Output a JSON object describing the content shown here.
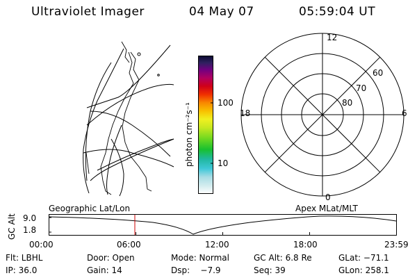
{
  "header": {
    "instrument": "Ultraviolet Imager",
    "date": "04 May 07",
    "time": "05:59:04 UT"
  },
  "colorbar": {
    "unit_label": "photon cm⁻²s⁻¹",
    "ticks": [
      "100",
      "10"
    ]
  },
  "polar_plot": {
    "mlt_labels": {
      "top": "12",
      "left": "18",
      "right": "6",
      "bottom": "0"
    },
    "lat_labels": [
      "60",
      "70",
      "80"
    ]
  },
  "timeline": {
    "left_title": "Geographic Lat/Lon",
    "right_title": "Apex MLat/MLT",
    "y_axis_label": "GC Alt",
    "y_ticks": [
      "9.0",
      "1.8"
    ],
    "x_ticks": [
      "00:00",
      "06:00",
      "12:00",
      "18:00",
      "23:59"
    ],
    "marker_time": "05:59:04",
    "marker_color": "#cc0000"
  },
  "footer": {
    "row1": [
      {
        "key": "flt",
        "text": "Flt: LBHL"
      },
      {
        "key": "door",
        "text": "Door: Open"
      },
      {
        "key": "mode",
        "text": "Mode: Normal"
      },
      {
        "key": "gcalt",
        "text": "GC Alt: 6.8 Re"
      },
      {
        "key": "glat",
        "text": "GLat: −71.1"
      }
    ],
    "row2": [
      {
        "key": "ip",
        "text": "IP: 36.0"
      },
      {
        "key": "gain",
        "text": "Gain: 14"
      },
      {
        "key": "dsp",
        "text": "Dsp:    −7.9"
      },
      {
        "key": "seq",
        "text": "Seq: 39"
      },
      {
        "key": "glon",
        "text": "GLon: 258.1"
      }
    ]
  }
}
